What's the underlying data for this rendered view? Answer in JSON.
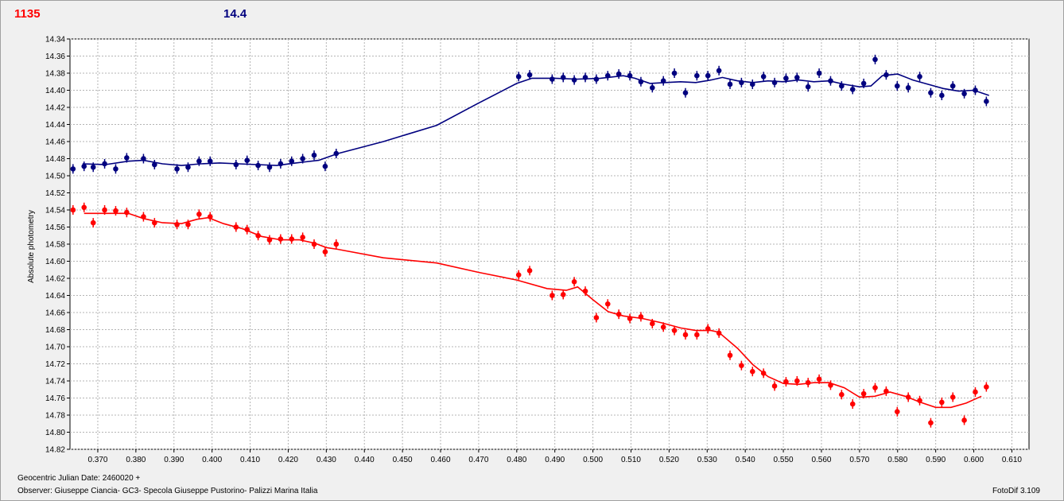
{
  "header": {
    "red_label": "1135",
    "blue_label": "14.4"
  },
  "footer": {
    "date": "Geocentric Julian Date: 2460020 +",
    "observer": "Observer: Giuseppe Ciancia- GC3- Specola Giuseppe Pustorino- Palizzi Marina Italia",
    "software": "FotoDif 3.109"
  },
  "colors": {
    "red": "#ff0000",
    "blue": "#00007f",
    "grid": "#b4b4b4",
    "plot_bg": "#ffffff"
  },
  "chart_data": {
    "type": "scatter",
    "ylabel": "Absolute photometry",
    "y_inverted": true,
    "xlim": [
      0.3627,
      0.6145
    ],
    "ylim": [
      14.34,
      14.82
    ],
    "xticks": [
      "0.370",
      "0.380",
      "0.390",
      "0.400",
      "0.410",
      "0.420",
      "0.430",
      "0.440",
      "0.450",
      "0.460",
      "0.470",
      "0.480",
      "0.490",
      "0.500",
      "0.510",
      "0.520",
      "0.530",
      "0.540",
      "0.550",
      "0.560",
      "0.570",
      "0.580",
      "0.590",
      "0.600",
      "0.610"
    ],
    "yticks": [
      "14.34",
      "14.36",
      "14.38",
      "14.40",
      "14.42",
      "14.44",
      "14.46",
      "14.48",
      "14.50",
      "14.52",
      "14.54",
      "14.56",
      "14.58",
      "14.60",
      "14.62",
      "14.64",
      "14.66",
      "14.68",
      "14.70",
      "14.72",
      "14.74",
      "14.76",
      "14.78",
      "14.80",
      "14.82"
    ],
    "grid": true,
    "series": [
      {
        "color": "#00007f",
        "points": [
          [
            0.3635,
            14.492
          ],
          [
            0.3664,
            14.489
          ],
          [
            0.3688,
            14.49
          ],
          [
            0.3718,
            14.486
          ],
          [
            0.3747,
            14.492
          ],
          [
            0.3776,
            14.479
          ],
          [
            0.382,
            14.48
          ],
          [
            0.3849,
            14.487
          ],
          [
            0.3908,
            14.492
          ],
          [
            0.3937,
            14.49
          ],
          [
            0.3966,
            14.483
          ],
          [
            0.3995,
            14.483
          ],
          [
            0.4063,
            14.487
          ],
          [
            0.4092,
            14.482
          ],
          [
            0.4121,
            14.488
          ],
          [
            0.4151,
            14.49
          ],
          [
            0.418,
            14.486
          ],
          [
            0.4209,
            14.483
          ],
          [
            0.4238,
            14.48
          ],
          [
            0.4268,
            14.476
          ],
          [
            0.4297,
            14.489
          ],
          [
            0.4326,
            14.474
          ],
          [
            0.4805,
            14.384
          ],
          [
            0.4834,
            14.382
          ],
          [
            0.4893,
            14.387
          ],
          [
            0.4922,
            14.385
          ],
          [
            0.4951,
            14.388
          ],
          [
            0.498,
            14.385
          ],
          [
            0.5009,
            14.387
          ],
          [
            0.5039,
            14.383
          ],
          [
            0.5068,
            14.381
          ],
          [
            0.5097,
            14.383
          ],
          [
            0.5126,
            14.39
          ],
          [
            0.5156,
            14.397
          ],
          [
            0.5185,
            14.389
          ],
          [
            0.5214,
            14.38
          ],
          [
            0.5243,
            14.403
          ],
          [
            0.5273,
            14.383
          ],
          [
            0.5302,
            14.383
          ],
          [
            0.5331,
            14.377
          ],
          [
            0.536,
            14.393
          ],
          [
            0.539,
            14.391
          ],
          [
            0.5419,
            14.393
          ],
          [
            0.5448,
            14.384
          ],
          [
            0.5477,
            14.391
          ],
          [
            0.5507,
            14.386
          ],
          [
            0.5536,
            14.385
          ],
          [
            0.5565,
            14.396
          ],
          [
            0.5594,
            14.38
          ],
          [
            0.5624,
            14.389
          ],
          [
            0.5653,
            14.395
          ],
          [
            0.5682,
            14.399
          ],
          [
            0.5711,
            14.392
          ],
          [
            0.5741,
            14.364
          ],
          [
            0.577,
            14.382
          ],
          [
            0.5799,
            14.395
          ],
          [
            0.5828,
            14.397
          ],
          [
            0.5858,
            14.384
          ],
          [
            0.5887,
            14.403
          ],
          [
            0.5916,
            14.406
          ],
          [
            0.5945,
            14.395
          ],
          [
            0.5975,
            14.404
          ],
          [
            0.6004,
            14.4
          ],
          [
            0.6033,
            14.413
          ]
        ],
        "curve": [
          [
            0.366,
            14.486
          ],
          [
            0.372,
            14.487
          ],
          [
            0.378,
            14.483
          ],
          [
            0.382,
            14.482
          ],
          [
            0.387,
            14.486
          ],
          [
            0.392,
            14.488
          ],
          [
            0.397,
            14.486
          ],
          [
            0.402,
            14.485
          ],
          [
            0.407,
            14.486
          ],
          [
            0.412,
            14.487
          ],
          [
            0.417,
            14.488
          ],
          [
            0.422,
            14.485
          ],
          [
            0.428,
            14.482
          ],
          [
            0.433,
            14.474
          ],
          [
            0.445,
            14.46
          ],
          [
            0.459,
            14.441
          ],
          [
            0.47,
            14.415
          ],
          [
            0.48,
            14.392
          ],
          [
            0.484,
            14.386
          ],
          [
            0.49,
            14.386
          ],
          [
            0.496,
            14.387
          ],
          [
            0.502,
            14.386
          ],
          [
            0.508,
            14.383
          ],
          [
            0.511,
            14.386
          ],
          [
            0.515,
            14.392
          ],
          [
            0.519,
            14.391
          ],
          [
            0.523,
            14.39
          ],
          [
            0.527,
            14.391
          ],
          [
            0.531,
            14.388
          ],
          [
            0.534,
            14.385
          ],
          [
            0.538,
            14.389
          ],
          [
            0.542,
            14.391
          ],
          [
            0.546,
            14.389
          ],
          [
            0.55,
            14.39
          ],
          [
            0.554,
            14.388
          ],
          [
            0.558,
            14.39
          ],
          [
            0.562,
            14.389
          ],
          [
            0.566,
            14.393
          ],
          [
            0.57,
            14.396
          ],
          [
            0.573,
            14.395
          ],
          [
            0.576,
            14.383
          ],
          [
            0.58,
            14.381
          ],
          [
            0.584,
            14.388
          ],
          [
            0.588,
            14.393
          ],
          [
            0.592,
            14.398
          ],
          [
            0.596,
            14.401
          ],
          [
            0.6,
            14.4
          ],
          [
            0.604,
            14.406
          ]
        ]
      },
      {
        "color": "#ff0000",
        "points": [
          [
            0.3635,
            14.54
          ],
          [
            0.3664,
            14.537
          ],
          [
            0.3688,
            14.555
          ],
          [
            0.3718,
            14.54
          ],
          [
            0.3747,
            14.541
          ],
          [
            0.3776,
            14.543
          ],
          [
            0.382,
            14.548
          ],
          [
            0.3849,
            14.555
          ],
          [
            0.3908,
            14.557
          ],
          [
            0.3937,
            14.557
          ],
          [
            0.3966,
            14.545
          ],
          [
            0.3995,
            14.548
          ],
          [
            0.4063,
            14.56
          ],
          [
            0.4092,
            14.563
          ],
          [
            0.4121,
            14.57
          ],
          [
            0.4151,
            14.575
          ],
          [
            0.418,
            14.574
          ],
          [
            0.4209,
            14.574
          ],
          [
            0.4238,
            14.572
          ],
          [
            0.4268,
            14.58
          ],
          [
            0.4297,
            14.589
          ],
          [
            0.4326,
            14.58
          ],
          [
            0.4805,
            14.616
          ],
          [
            0.4834,
            14.611
          ],
          [
            0.4893,
            14.64
          ],
          [
            0.4922,
            14.639
          ],
          [
            0.4951,
            14.624
          ],
          [
            0.498,
            14.635
          ],
          [
            0.5009,
            14.666
          ],
          [
            0.5039,
            14.65
          ],
          [
            0.5068,
            14.662
          ],
          [
            0.5097,
            14.667
          ],
          [
            0.5126,
            14.665
          ],
          [
            0.5156,
            14.673
          ],
          [
            0.5185,
            14.677
          ],
          [
            0.5214,
            14.681
          ],
          [
            0.5243,
            14.686
          ],
          [
            0.5273,
            14.686
          ],
          [
            0.5302,
            14.679
          ],
          [
            0.5331,
            14.684
          ],
          [
            0.536,
            14.71
          ],
          [
            0.539,
            14.722
          ],
          [
            0.5419,
            14.729
          ],
          [
            0.5448,
            14.731
          ],
          [
            0.5477,
            14.746
          ],
          [
            0.5507,
            14.741
          ],
          [
            0.5536,
            14.74
          ],
          [
            0.5565,
            14.742
          ],
          [
            0.5594,
            14.738
          ],
          [
            0.5624,
            14.745
          ],
          [
            0.5653,
            14.756
          ],
          [
            0.5682,
            14.767
          ],
          [
            0.5711,
            14.755
          ],
          [
            0.5741,
            14.748
          ],
          [
            0.577,
            14.752
          ],
          [
            0.5799,
            14.776
          ],
          [
            0.5828,
            14.759
          ],
          [
            0.5858,
            14.763
          ],
          [
            0.5887,
            14.789
          ],
          [
            0.5916,
            14.765
          ],
          [
            0.5945,
            14.759
          ],
          [
            0.5975,
            14.786
          ],
          [
            0.6004,
            14.753
          ],
          [
            0.6033,
            14.747
          ]
        ],
        "curve": [
          [
            0.3664,
            14.544
          ],
          [
            0.372,
            14.544
          ],
          [
            0.378,
            14.544
          ],
          [
            0.382,
            14.55
          ],
          [
            0.387,
            14.555
          ],
          [
            0.392,
            14.556
          ],
          [
            0.396,
            14.551
          ],
          [
            0.399,
            14.549
          ],
          [
            0.403,
            14.556
          ],
          [
            0.408,
            14.562
          ],
          [
            0.413,
            14.571
          ],
          [
            0.418,
            14.575
          ],
          [
            0.423,
            14.575
          ],
          [
            0.427,
            14.579
          ],
          [
            0.43,
            14.584
          ],
          [
            0.433,
            14.586
          ],
          [
            0.445,
            14.596
          ],
          [
            0.459,
            14.602
          ],
          [
            0.47,
            14.613
          ],
          [
            0.48,
            14.622
          ],
          [
            0.488,
            14.632
          ],
          [
            0.493,
            14.634
          ],
          [
            0.496,
            14.63
          ],
          [
            0.5,
            14.645
          ],
          [
            0.504,
            14.659
          ],
          [
            0.508,
            14.664
          ],
          [
            0.513,
            14.667
          ],
          [
            0.518,
            14.672
          ],
          [
            0.523,
            14.678
          ],
          [
            0.527,
            14.681
          ],
          [
            0.531,
            14.681
          ],
          [
            0.533,
            14.683
          ],
          [
            0.538,
            14.702
          ],
          [
            0.542,
            14.721
          ],
          [
            0.546,
            14.735
          ],
          [
            0.55,
            14.743
          ],
          [
            0.554,
            14.744
          ],
          [
            0.558,
            14.742
          ],
          [
            0.562,
            14.742
          ],
          [
            0.566,
            14.748
          ],
          [
            0.57,
            14.759
          ],
          [
            0.574,
            14.758
          ],
          [
            0.578,
            14.753
          ],
          [
            0.582,
            14.758
          ],
          [
            0.586,
            14.765
          ],
          [
            0.59,
            14.771
          ],
          [
            0.594,
            14.771
          ],
          [
            0.598,
            14.766
          ],
          [
            0.602,
            14.758
          ]
        ]
      }
    ]
  }
}
